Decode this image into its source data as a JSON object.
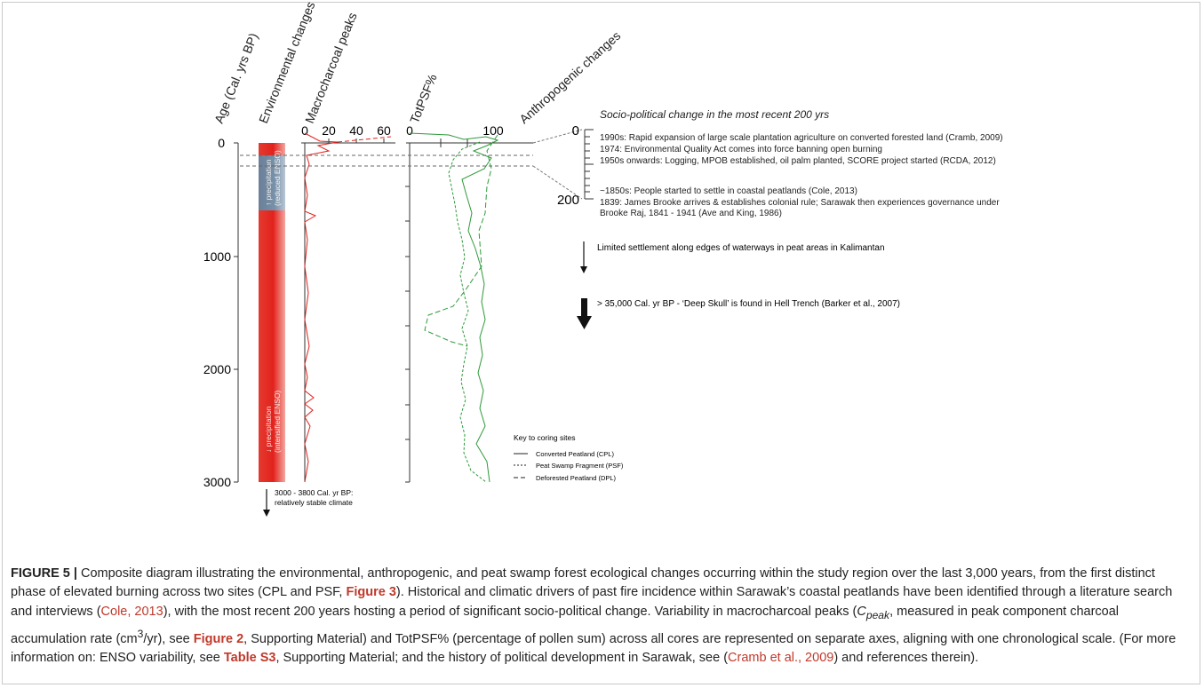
{
  "figure": {
    "headers": {
      "age": "Age (Cal. yrs BP)",
      "environmental": "Environmental changes",
      "macrocharcoal": "Macrocharcoal peaks",
      "totpsf": "TotPSF%",
      "anthropogenic": "Anthropogenic changes"
    },
    "age_ticks": [
      "0",
      "1000",
      "2000",
      "3000"
    ],
    "macro_ticks": [
      "0",
      "20",
      "40",
      "60"
    ],
    "totpsf_ticks": [
      "0",
      "100"
    ],
    "env_bands": {
      "upper": "↑ precipitation\n(reduced ENSO)",
      "lower": "↓ precipitation\n(intensified ENSO)"
    },
    "bottom_note": [
      "3000 - 3800 Cal. yr BP:",
      "relatively stable climate"
    ],
    "socio": {
      "title": "Socio-political change in the most recent 200 yrs",
      "scale_top": "0",
      "scale_bottom": "200",
      "events": [
        "1990s: Rapid expansion of large scale plantation agriculture on converted forested land (Cramb, 2009)",
        "1974: Environmental Quality Act comes into force banning open burning",
        "1950s onwards: Logging, MPOB established, oil palm planted, SCORE project started (RCDA, 2012)",
        "~1850s: People started to settle in coastal peatlands (Cole, 2013)",
        "1839: James Brooke arrives & establishes colonial rule; Sarawak then experiences governance under",
        "Brooke Raj, 1841 - 1941 (Ave and King, 1986)"
      ]
    },
    "notes": {
      "settlement": "Limited settlement along edges of waterways in peat areas in Kalimantan",
      "skull": "> 35,000 Cal. yr BP - ‘Deep Skull’ is found in Hell Trench (Barker et al., 2007)"
    },
    "key": {
      "title": "Key to coring sites",
      "items": [
        "Converted Peatland (CPL)",
        "Peat Swamp Fragment (PSF)",
        "Deforested Peatland (DPL)"
      ]
    },
    "colors": {
      "red": "#e2221c",
      "green": "#2e9a3a",
      "band_blue": "#6f86a0"
    }
  },
  "caption": {
    "label": "FIGURE 5 |",
    "t1": " Composite diagram illustrating the environmental, anthropogenic, and peat swamp forest ecological changes occurring within the study region over the last 3,000 years, from the first distinct phase of elevated burning across two sites (CPL and PSF, ",
    "ref_fig3": "Figure 3",
    "t2": "). Historical and climatic drivers of past fire incidence within Sarawak’s coastal peatlands have been identified through a literature search and interviews (",
    "cite_cole": "Cole, 2013",
    "t3": "), with the most recent 200 years hosting a period of significant socio-political change. Variability in macrocharcoal peaks (",
    "cpeak_c": "C",
    "cpeak_sub": "peak",
    "t4": ", measured in peak component charcoal accumulation rate (cm",
    "sup3": "3",
    "t5": "/yr), see ",
    "ref_fig2": "Figure 2",
    "t6": ", Supporting Material) and TotPSF% (percentage of pollen sum) across all cores are represented on separate axes, aligning with one chronological scale. (For more information on: ENSO variability, see ",
    "ref_s3": "Table S3",
    "t7": ", Supporting Material; and the history of political development in Sarawak, see (",
    "cite_cramb": "Cramb et al., 2009",
    "t8": ") and references therein)."
  }
}
